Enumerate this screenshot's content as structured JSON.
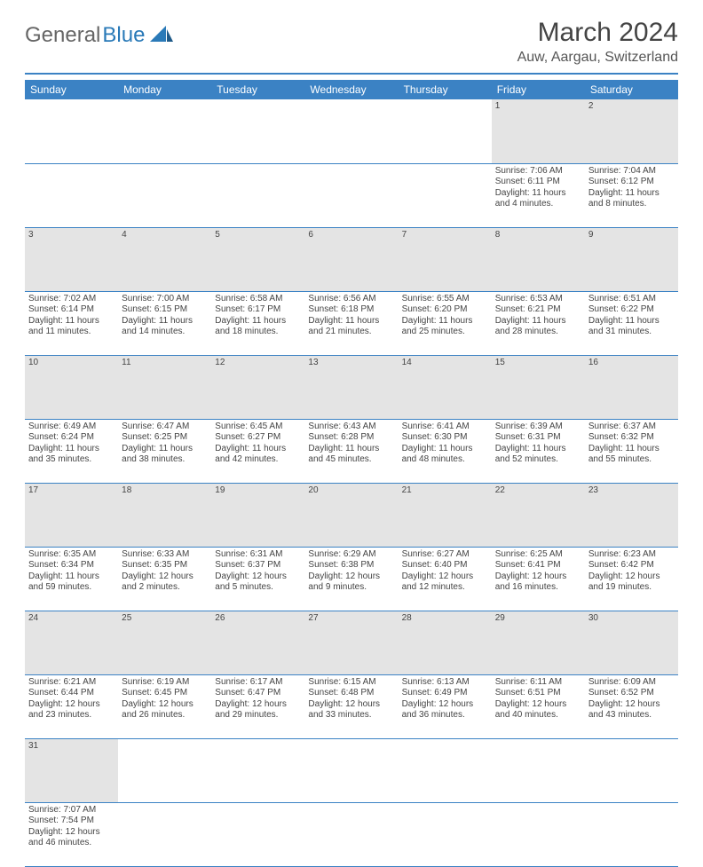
{
  "logo": {
    "part1": "General",
    "part2": "Blue"
  },
  "title": "March 2024",
  "location": "Auw, Aargau, Switzerland",
  "colors": {
    "header_bg": "#3b82c4",
    "header_text": "#ffffff",
    "daynum_bg": "#e4e4e4",
    "border": "#3b82c4",
    "text": "#444444"
  },
  "weekdays": [
    "Sunday",
    "Monday",
    "Tuesday",
    "Wednesday",
    "Thursday",
    "Friday",
    "Saturday"
  ],
  "weeks": [
    [
      null,
      null,
      null,
      null,
      null,
      {
        "n": "1",
        "sr": "Sunrise: 7:06 AM",
        "ss": "Sunset: 6:11 PM",
        "d1": "Daylight: 11 hours",
        "d2": "and 4 minutes."
      },
      {
        "n": "2",
        "sr": "Sunrise: 7:04 AM",
        "ss": "Sunset: 6:12 PM",
        "d1": "Daylight: 11 hours",
        "d2": "and 8 minutes."
      }
    ],
    [
      {
        "n": "3",
        "sr": "Sunrise: 7:02 AM",
        "ss": "Sunset: 6:14 PM",
        "d1": "Daylight: 11 hours",
        "d2": "and 11 minutes."
      },
      {
        "n": "4",
        "sr": "Sunrise: 7:00 AM",
        "ss": "Sunset: 6:15 PM",
        "d1": "Daylight: 11 hours",
        "d2": "and 14 minutes."
      },
      {
        "n": "5",
        "sr": "Sunrise: 6:58 AM",
        "ss": "Sunset: 6:17 PM",
        "d1": "Daylight: 11 hours",
        "d2": "and 18 minutes."
      },
      {
        "n": "6",
        "sr": "Sunrise: 6:56 AM",
        "ss": "Sunset: 6:18 PM",
        "d1": "Daylight: 11 hours",
        "d2": "and 21 minutes."
      },
      {
        "n": "7",
        "sr": "Sunrise: 6:55 AM",
        "ss": "Sunset: 6:20 PM",
        "d1": "Daylight: 11 hours",
        "d2": "and 25 minutes."
      },
      {
        "n": "8",
        "sr": "Sunrise: 6:53 AM",
        "ss": "Sunset: 6:21 PM",
        "d1": "Daylight: 11 hours",
        "d2": "and 28 minutes."
      },
      {
        "n": "9",
        "sr": "Sunrise: 6:51 AM",
        "ss": "Sunset: 6:22 PM",
        "d1": "Daylight: 11 hours",
        "d2": "and 31 minutes."
      }
    ],
    [
      {
        "n": "10",
        "sr": "Sunrise: 6:49 AM",
        "ss": "Sunset: 6:24 PM",
        "d1": "Daylight: 11 hours",
        "d2": "and 35 minutes."
      },
      {
        "n": "11",
        "sr": "Sunrise: 6:47 AM",
        "ss": "Sunset: 6:25 PM",
        "d1": "Daylight: 11 hours",
        "d2": "and 38 minutes."
      },
      {
        "n": "12",
        "sr": "Sunrise: 6:45 AM",
        "ss": "Sunset: 6:27 PM",
        "d1": "Daylight: 11 hours",
        "d2": "and 42 minutes."
      },
      {
        "n": "13",
        "sr": "Sunrise: 6:43 AM",
        "ss": "Sunset: 6:28 PM",
        "d1": "Daylight: 11 hours",
        "d2": "and 45 minutes."
      },
      {
        "n": "14",
        "sr": "Sunrise: 6:41 AM",
        "ss": "Sunset: 6:30 PM",
        "d1": "Daylight: 11 hours",
        "d2": "and 48 minutes."
      },
      {
        "n": "15",
        "sr": "Sunrise: 6:39 AM",
        "ss": "Sunset: 6:31 PM",
        "d1": "Daylight: 11 hours",
        "d2": "and 52 minutes."
      },
      {
        "n": "16",
        "sr": "Sunrise: 6:37 AM",
        "ss": "Sunset: 6:32 PM",
        "d1": "Daylight: 11 hours",
        "d2": "and 55 minutes."
      }
    ],
    [
      {
        "n": "17",
        "sr": "Sunrise: 6:35 AM",
        "ss": "Sunset: 6:34 PM",
        "d1": "Daylight: 11 hours",
        "d2": "and 59 minutes."
      },
      {
        "n": "18",
        "sr": "Sunrise: 6:33 AM",
        "ss": "Sunset: 6:35 PM",
        "d1": "Daylight: 12 hours",
        "d2": "and 2 minutes."
      },
      {
        "n": "19",
        "sr": "Sunrise: 6:31 AM",
        "ss": "Sunset: 6:37 PM",
        "d1": "Daylight: 12 hours",
        "d2": "and 5 minutes."
      },
      {
        "n": "20",
        "sr": "Sunrise: 6:29 AM",
        "ss": "Sunset: 6:38 PM",
        "d1": "Daylight: 12 hours",
        "d2": "and 9 minutes."
      },
      {
        "n": "21",
        "sr": "Sunrise: 6:27 AM",
        "ss": "Sunset: 6:40 PM",
        "d1": "Daylight: 12 hours",
        "d2": "and 12 minutes."
      },
      {
        "n": "22",
        "sr": "Sunrise: 6:25 AM",
        "ss": "Sunset: 6:41 PM",
        "d1": "Daylight: 12 hours",
        "d2": "and 16 minutes."
      },
      {
        "n": "23",
        "sr": "Sunrise: 6:23 AM",
        "ss": "Sunset: 6:42 PM",
        "d1": "Daylight: 12 hours",
        "d2": "and 19 minutes."
      }
    ],
    [
      {
        "n": "24",
        "sr": "Sunrise: 6:21 AM",
        "ss": "Sunset: 6:44 PM",
        "d1": "Daylight: 12 hours",
        "d2": "and 23 minutes."
      },
      {
        "n": "25",
        "sr": "Sunrise: 6:19 AM",
        "ss": "Sunset: 6:45 PM",
        "d1": "Daylight: 12 hours",
        "d2": "and 26 minutes."
      },
      {
        "n": "26",
        "sr": "Sunrise: 6:17 AM",
        "ss": "Sunset: 6:47 PM",
        "d1": "Daylight: 12 hours",
        "d2": "and 29 minutes."
      },
      {
        "n": "27",
        "sr": "Sunrise: 6:15 AM",
        "ss": "Sunset: 6:48 PM",
        "d1": "Daylight: 12 hours",
        "d2": "and 33 minutes."
      },
      {
        "n": "28",
        "sr": "Sunrise: 6:13 AM",
        "ss": "Sunset: 6:49 PM",
        "d1": "Daylight: 12 hours",
        "d2": "and 36 minutes."
      },
      {
        "n": "29",
        "sr": "Sunrise: 6:11 AM",
        "ss": "Sunset: 6:51 PM",
        "d1": "Daylight: 12 hours",
        "d2": "and 40 minutes."
      },
      {
        "n": "30",
        "sr": "Sunrise: 6:09 AM",
        "ss": "Sunset: 6:52 PM",
        "d1": "Daylight: 12 hours",
        "d2": "and 43 minutes."
      }
    ],
    [
      {
        "n": "31",
        "sr": "Sunrise: 7:07 AM",
        "ss": "Sunset: 7:54 PM",
        "d1": "Daylight: 12 hours",
        "d2": "and 46 minutes."
      },
      null,
      null,
      null,
      null,
      null,
      null
    ]
  ]
}
